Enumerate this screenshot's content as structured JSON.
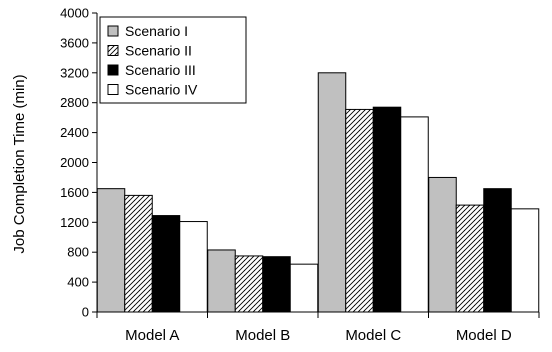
{
  "chart_data": {
    "type": "bar",
    "categories": [
      "Model A",
      "Model B",
      "Model C",
      "Model D"
    ],
    "series": [
      {
        "name": "Scenario I",
        "values": [
          1650,
          830,
          3200,
          1800
        ],
        "fill": "#c0c0c0",
        "pattern": "solid"
      },
      {
        "name": "Scenario II",
        "values": [
          1560,
          750,
          2710,
          1430
        ],
        "fill": "#ffffff",
        "pattern": "diagonal-hatch"
      },
      {
        "name": "Scenario III",
        "values": [
          1290,
          740,
          2740,
          1650
        ],
        "fill": "#000000",
        "pattern": "solid"
      },
      {
        "name": "Scenario IV",
        "values": [
          1210,
          640,
          2610,
          1380
        ],
        "fill": "#ffffff",
        "pattern": "solid"
      }
    ],
    "title": "",
    "xlabel": "",
    "ylabel": "Job Completion Time (min)",
    "ylim": [
      0,
      4000
    ],
    "yticks": [
      0,
      400,
      800,
      1200,
      1600,
      2000,
      2400,
      2800,
      3200,
      3600,
      4000
    ],
    "grid": false,
    "legend_position": "top-left"
  }
}
